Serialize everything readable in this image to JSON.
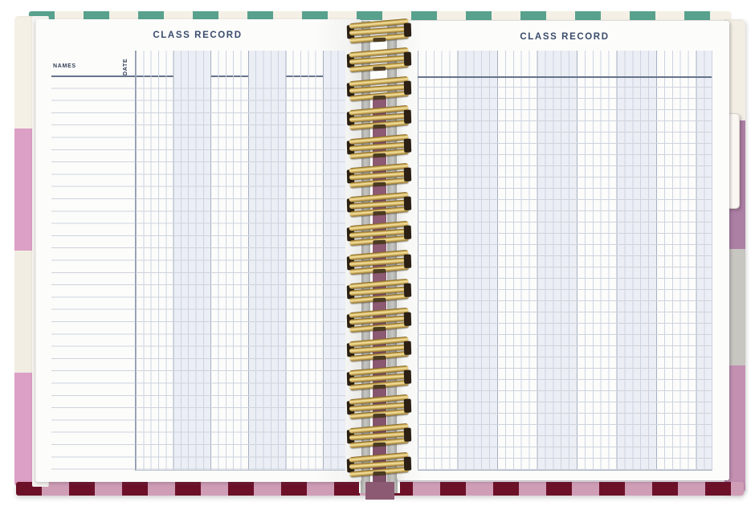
{
  "book": {
    "left_page": {
      "title": "CLASS RECORD",
      "names_header": "NAMES",
      "date_header": "DATE",
      "grid": {
        "columns": 28,
        "rows": 32,
        "column_group_size": 5,
        "name_rows": 32
      }
    },
    "right_page": {
      "title": "CLASS RECORD",
      "grid": {
        "columns": 37,
        "rows": 35,
        "column_group_size": 5
      }
    },
    "binding": {
      "style": "twin-loop-wire",
      "coil_count": 16,
      "coil_color_gold": "#c9a64e"
    },
    "tab": {
      "color": "#faf7f2"
    },
    "colors": {
      "title_color": "#3a4c6b",
      "page_bg": "#fcfcfb",
      "grid_line": "#ccd3e0",
      "grid_strong": "#a6b0c2",
      "row_line": "#ced4dc",
      "header_line": "#66748c",
      "band": "#ebeef4",
      "stripe_teal": "#58a28d",
      "stripe_cream": "#f4f0e6",
      "stripe_cream2": "#f1ede3",
      "stripe_pink": "#dc9fc5",
      "stripe_maroon": "#6d1129",
      "stripe_pink_light": "#cf9db6",
      "edge_cream": "#f2eee4",
      "edge_mauve": "#ac7fa4",
      "edge_gray": "#c7c6c0",
      "edge_pink": "#c390b2",
      "tab_color": "#faf7f2"
    }
  }
}
